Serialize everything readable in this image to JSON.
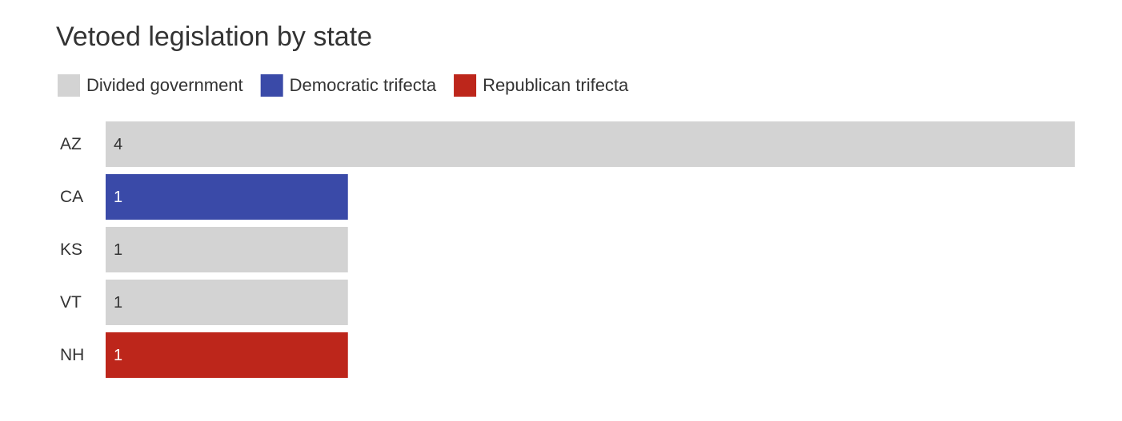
{
  "chart_data": {
    "type": "bar",
    "orientation": "horizontal",
    "title": "Vetoed legislation by state",
    "categories": [
      "AZ",
      "CA",
      "KS",
      "VT",
      "NH"
    ],
    "series": [
      {
        "name": "Divided government",
        "color": "#d3d3d3",
        "values": [
          4,
          null,
          1,
          1,
          null
        ]
      },
      {
        "name": "Democratic trifecta",
        "color": "#3a4aa8",
        "values": [
          null,
          1,
          null,
          null,
          null
        ]
      },
      {
        "name": "Republican trifecta",
        "color": "#bd261b",
        "values": [
          null,
          null,
          null,
          null,
          1
        ]
      }
    ]
  }
}
